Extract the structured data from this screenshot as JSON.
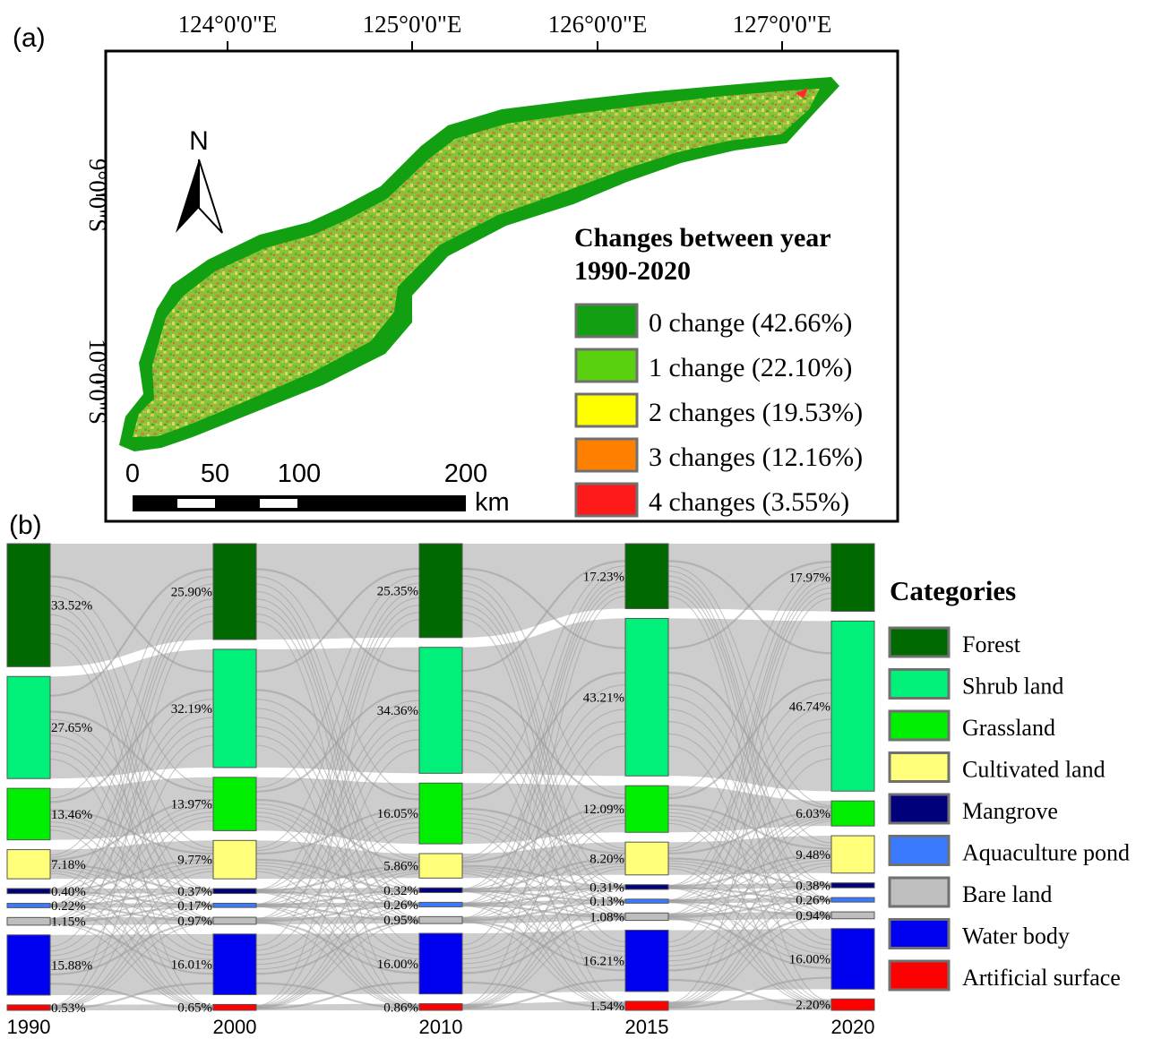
{
  "panel_a": {
    "label": "(a)",
    "lon_labels": [
      "124°0'0\"E",
      "125°0'0\"E",
      "126°0'0\"E",
      "127°0'0\"E"
    ],
    "lat_labels": [
      "9°0'0\"S",
      "10°0'0\"S"
    ],
    "north_label": "N",
    "scale_labels": [
      "0",
      "50",
      "100",
      "200"
    ],
    "scale_unit": "km",
    "legend_title_line1": "Changes between year",
    "legend_title_line2": "1990-2020",
    "legend": [
      {
        "label": "0 change (42.66%)",
        "color": "#12a012"
      },
      {
        "label": "1 change (22.10%)",
        "color": "#5ad10f"
      },
      {
        "label": "2 changes (19.53%)",
        "color": "#ffff00"
      },
      {
        "label": "3 changes (12.16%)",
        "color": "#ff8000"
      },
      {
        "label": "4 changes (3.55%)",
        "color": "#ff1a1a"
      }
    ]
  },
  "panel_b": {
    "label": "(b)",
    "legend_title": "Categories",
    "categories": [
      {
        "name": "Forest",
        "color": "#006a00"
      },
      {
        "name": "Shrub land",
        "color": "#00f07a"
      },
      {
        "name": "Grassland",
        "color": "#00ee00"
      },
      {
        "name": "Cultivated land",
        "color": "#ffff7a"
      },
      {
        "name": "Mangrove",
        "color": "#00007a"
      },
      {
        "name": "Aquaculture pond",
        "color": "#3a7aff"
      },
      {
        "name": "Bare land",
        "color": "#bebebe"
      },
      {
        "name": "Water body",
        "color": "#0000f0"
      },
      {
        "name": "Artificial surface",
        "color": "#ff0000"
      }
    ],
    "years": [
      {
        "year": "1990",
        "values": [
          "33.52%",
          "27.65%",
          "13.46%",
          "7.18%",
          "0.40%",
          "0.22%",
          "1.15%",
          "15.88%",
          "0.53%"
        ]
      },
      {
        "year": "2000",
        "values": [
          "25.90%",
          "32.19%",
          "13.97%",
          "9.77%",
          "0.37%",
          "0.17%",
          "0.97%",
          "16.01%",
          "0.65%"
        ]
      },
      {
        "year": "2010",
        "values": [
          "25.35%",
          "34.36%",
          "16.05%",
          "5.86%",
          "0.32%",
          "0.26%",
          "0.95%",
          "16.00%",
          "0.86%"
        ]
      },
      {
        "year": "2015",
        "values": [
          "17.23%",
          "43.21%",
          "12.09%",
          "8.20%",
          "0.31%",
          "0.13%",
          "1.08%",
          "16.21%",
          "1.54%"
        ]
      },
      {
        "year": "2020",
        "values": [
          "17.97%",
          "46.74%",
          "6.03%",
          "9.48%",
          "0.38%",
          "0.26%",
          "0.94%",
          "16.00%",
          "2.20%"
        ]
      }
    ]
  }
}
